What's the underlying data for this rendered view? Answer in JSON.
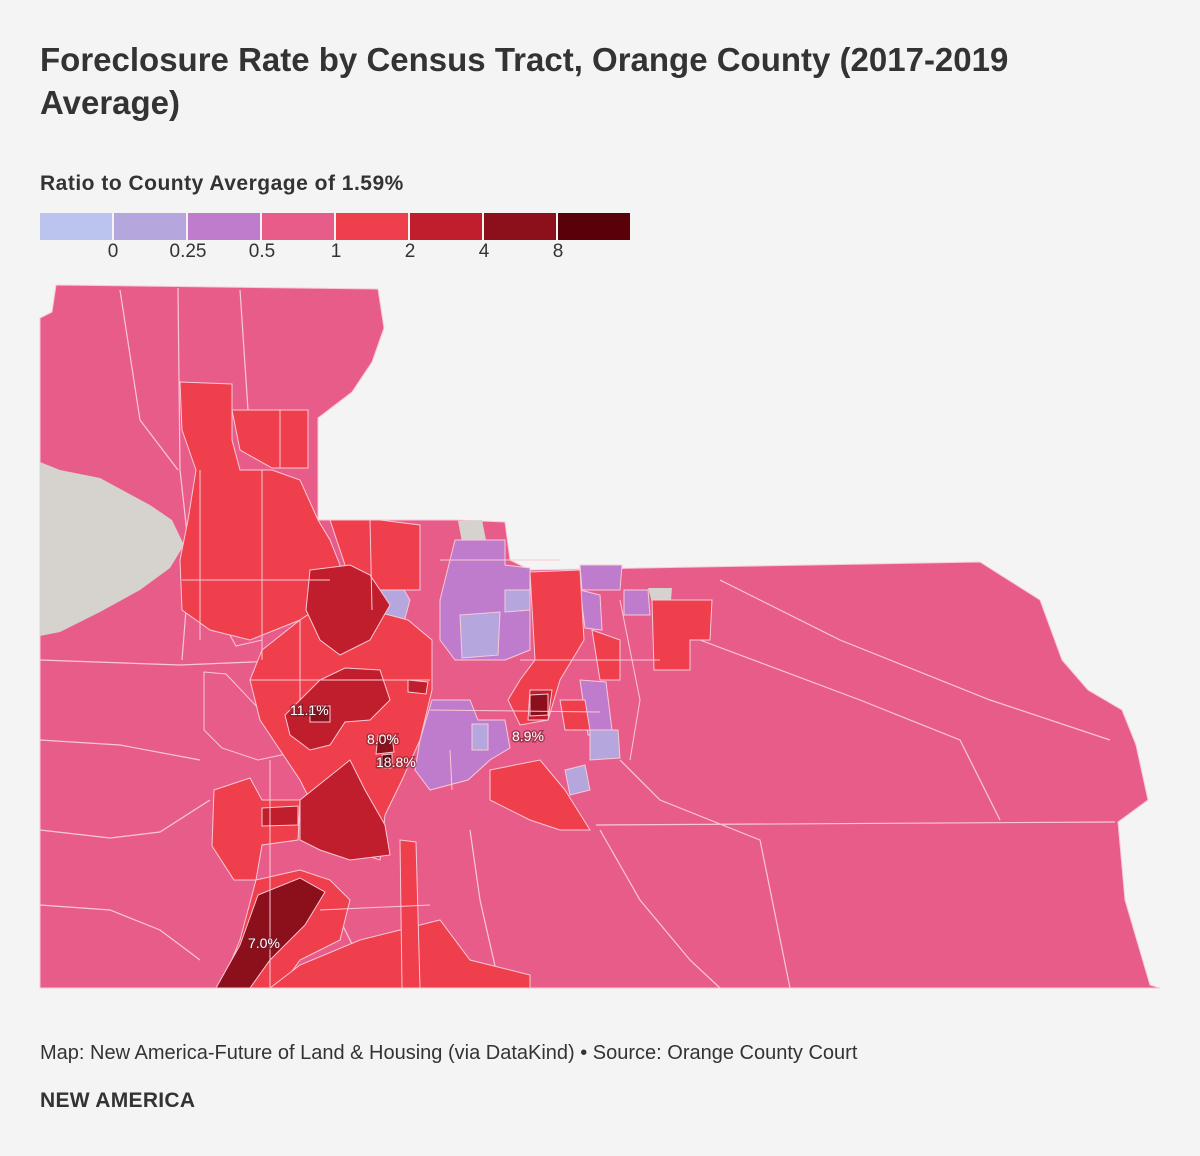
{
  "title": "Foreclosure Rate by Census Tract, Orange County (2017-2019 Average)",
  "legend": {
    "title": "Ratio to County Avergage of 1.59%",
    "bins": [
      {
        "color": "#bac4ef",
        "label": ""
      },
      {
        "color": "#b6a6de",
        "label": "0"
      },
      {
        "color": "#c07ccc",
        "label": "0.25"
      },
      {
        "color": "#e85c8a",
        "label": "0.5"
      },
      {
        "color": "#ef3e4c",
        "label": "1"
      },
      {
        "color": "#c11e2d",
        "label": "2"
      },
      {
        "color": "#8c0f1c",
        "label": "4"
      },
      {
        "color": "#5a0008",
        "label": "8"
      }
    ]
  },
  "colors": {
    "background": "#f4f4f4",
    "base": "#e85c8a",
    "no_data": "#d6d2ce",
    "border": "#f7c9d6"
  },
  "callouts": [
    "11.1%",
    "8.0%",
    "18.8%",
    "8.9%",
    "7.0%"
  ],
  "footer": {
    "credit": "Map: New America-Future of Land & Housing (via DataKind) • Source: Orange County Court",
    "brand": "NEW AMERICA"
  }
}
